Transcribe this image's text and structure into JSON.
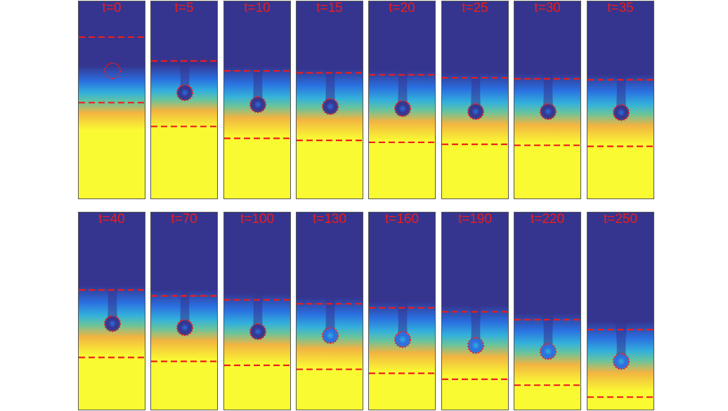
{
  "figure": {
    "colors": {
      "low": "#35358f",
      "blue": "#2a6fe0",
      "cyan": "#33b0dc",
      "green": "#67c49d",
      "orange": "#f2b441",
      "high": "#fafa33",
      "marker": "#ee1c1c"
    },
    "rows": [
      {
        "panels": [
          {
            "label": "t=0",
            "time": 0,
            "upper_line": 0.18,
            "lower_line": 0.51,
            "front": 0.5,
            "front_width": 0.11,
            "particle_y": 0.35,
            "wake": 0.0,
            "particle_fill": "none"
          },
          {
            "label": "t=5",
            "time": 5,
            "upper_line": 0.3,
            "lower_line": 0.63,
            "front": 0.49,
            "front_width": 0.11,
            "particle_y": 0.46,
            "wake": 0.06,
            "particle_fill": "low"
          },
          {
            "label": "t=10",
            "time": 10,
            "upper_line": 0.35,
            "lower_line": 0.69,
            "front": 0.52,
            "front_width": 0.12,
            "particle_y": 0.52,
            "wake": 0.12,
            "particle_fill": "low"
          },
          {
            "label": "t=15",
            "time": 15,
            "upper_line": 0.36,
            "lower_line": 0.7,
            "front": 0.53,
            "front_width": 0.12,
            "particle_y": 0.53,
            "wake": 0.14,
            "particle_fill": "low"
          },
          {
            "label": "t=20",
            "time": 20,
            "upper_line": 0.37,
            "lower_line": 0.71,
            "front": 0.54,
            "front_width": 0.12,
            "particle_y": 0.54,
            "wake": 0.15,
            "particle_fill": "low"
          },
          {
            "label": "t=25",
            "time": 25,
            "upper_line": 0.385,
            "lower_line": 0.72,
            "front": 0.55,
            "front_width": 0.12,
            "particle_y": 0.555,
            "wake": 0.16,
            "particle_fill": "low"
          },
          {
            "label": "t=30",
            "time": 30,
            "upper_line": 0.39,
            "lower_line": 0.725,
            "front": 0.555,
            "front_width": 0.12,
            "particle_y": 0.555,
            "wake": 0.16,
            "particle_fill": "low"
          },
          {
            "label": "t=35",
            "time": 35,
            "upper_line": 0.395,
            "lower_line": 0.73,
            "front": 0.56,
            "front_width": 0.12,
            "particle_y": 0.56,
            "wake": 0.16,
            "particle_fill": "low"
          }
        ]
      },
      {
        "panels": [
          {
            "label": "t=40",
            "time": 40,
            "upper_line": 0.39,
            "lower_line": 0.73,
            "front": 0.56,
            "front_width": 0.12,
            "particle_y": 0.56,
            "wake": 0.16,
            "particle_fill": "low"
          },
          {
            "label": "t=70",
            "time": 70,
            "upper_line": 0.42,
            "lower_line": 0.75,
            "front": 0.58,
            "front_width": 0.12,
            "particle_y": 0.58,
            "wake": 0.15,
            "particle_fill": "low"
          },
          {
            "label": "t=100",
            "time": 100,
            "upper_line": 0.44,
            "lower_line": 0.77,
            "front": 0.6,
            "front_width": 0.12,
            "particle_y": 0.6,
            "wake": 0.14,
            "particle_fill": "low"
          },
          {
            "label": "t=130",
            "time": 130,
            "upper_line": 0.46,
            "lower_line": 0.79,
            "front": 0.62,
            "front_width": 0.12,
            "particle_y": 0.62,
            "wake": 0.12,
            "particle_fill": "blue"
          },
          {
            "label": "t=160",
            "time": 160,
            "upper_line": 0.48,
            "lower_line": 0.81,
            "front": 0.64,
            "front_width": 0.12,
            "particle_y": 0.64,
            "wake": 0.1,
            "particle_fill": "blue"
          },
          {
            "label": "t=190",
            "time": 190,
            "upper_line": 0.5,
            "lower_line": 0.84,
            "front": 0.66,
            "front_width": 0.12,
            "particle_y": 0.67,
            "wake": 0.09,
            "particle_fill": "blue"
          },
          {
            "label": "t=220",
            "time": 220,
            "upper_line": 0.54,
            "lower_line": 0.87,
            "front": 0.7,
            "front_width": 0.12,
            "particle_y": 0.7,
            "wake": 0.08,
            "particle_fill": "blue"
          },
          {
            "label": "t=250",
            "time": 250,
            "upper_line": 0.59,
            "lower_line": 0.93,
            "front": 0.74,
            "front_width": 0.12,
            "particle_y": 0.75,
            "wake": 0.07,
            "particle_fill": "blue"
          }
        ]
      }
    ]
  }
}
